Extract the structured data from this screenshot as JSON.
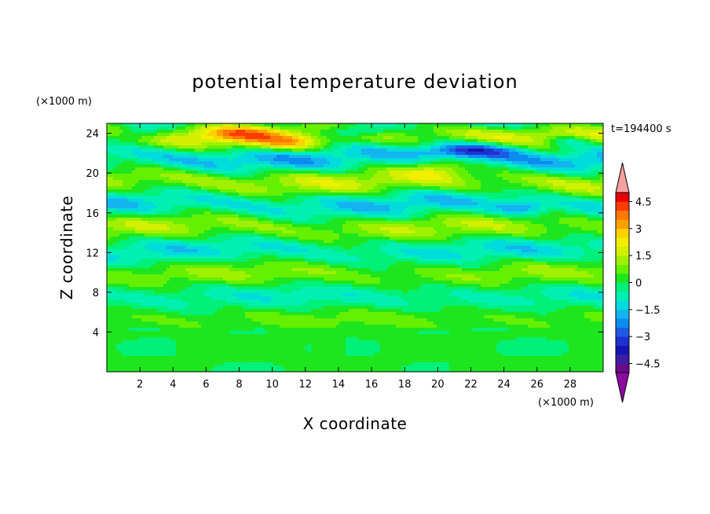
{
  "chart_data": {
    "type": "heatmap",
    "title": "potential temperature deviation",
    "xlabel": "X coordinate",
    "ylabel": "Z coordinate",
    "x_unit": "(×1000 m)",
    "y_unit": "(×1000 m)",
    "time_label": "t=194400 s",
    "xlim": [
      0,
      30
    ],
    "ylim": [
      0,
      25
    ],
    "x_ticks": [
      2,
      4,
      6,
      8,
      10,
      12,
      14,
      16,
      18,
      20,
      22,
      24,
      26,
      28
    ],
    "y_ticks": [
      4,
      8,
      12,
      16,
      20,
      24
    ],
    "colorbar": {
      "levels": [
        -5,
        -4.5,
        -4,
        -3.5,
        -3,
        -2.5,
        -2,
        -1.5,
        -1,
        -0.5,
        0,
        0.5,
        1,
        1.5,
        2,
        2.5,
        3,
        3.5,
        4,
        4.5,
        5
      ],
      "labels": [
        "4.5",
        "3",
        "1.5",
        "0",
        "−1.5",
        "−3",
        "−4.5"
      ],
      "label_values": [
        4.5,
        3,
        1.5,
        0,
        -1.5,
        -3,
        -4.5
      ],
      "colors": [
        "#6a0a8c",
        "#3c1ea0",
        "#1414b4",
        "#1e32d2",
        "#1e5ae6",
        "#0a8cf0",
        "#14b4f0",
        "#00dcdc",
        "#00f0b4",
        "#00f07a",
        "#1ee61e",
        "#64f000",
        "#a0f000",
        "#d2f000",
        "#f0f000",
        "#ffd200",
        "#ffa000",
        "#ff7800",
        "#ff3c00",
        "#e60000"
      ],
      "over_color": "#f5a0a0",
      "under_color": "#8c0aa0"
    },
    "value_range": [
      -2.5,
      2.5
    ]
  }
}
